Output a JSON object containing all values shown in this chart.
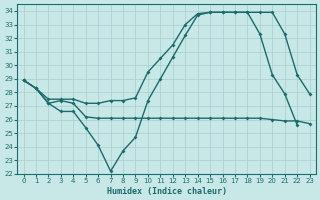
{
  "xlabel": "Humidex (Indice chaleur)",
  "xlim": [
    -0.5,
    23.5
  ],
  "ylim": [
    22,
    34.5
  ],
  "yticks": [
    22,
    23,
    24,
    25,
    26,
    27,
    28,
    29,
    30,
    31,
    32,
    33,
    34
  ],
  "xticks": [
    0,
    1,
    2,
    3,
    4,
    5,
    6,
    7,
    8,
    9,
    10,
    11,
    12,
    13,
    14,
    15,
    16,
    17,
    18,
    19,
    20,
    21,
    22,
    23
  ],
  "bg_color": "#c8e8e8",
  "line_color": "#1a6b6b",
  "grid_color": "#a8cccc",
  "series1_x": [
    0,
    1,
    2,
    3,
    4,
    5,
    6,
    7,
    8,
    9,
    10,
    11,
    12,
    13,
    14,
    15,
    16,
    17,
    18,
    19,
    20,
    21,
    22
  ],
  "series1_y": [
    28.9,
    28.3,
    27.2,
    26.6,
    26.6,
    25.4,
    24.1,
    22.2,
    23.7,
    24.7,
    27.4,
    29.0,
    30.6,
    32.2,
    33.7,
    33.9,
    33.9,
    33.9,
    33.9,
    32.3,
    29.3,
    27.9,
    25.6
  ],
  "series2_x": [
    0,
    1,
    2,
    3,
    4,
    5,
    6,
    7,
    8,
    9,
    10,
    11,
    12,
    13,
    14,
    15,
    16,
    17,
    18,
    19,
    20,
    21,
    22,
    23
  ],
  "series2_y": [
    28.9,
    28.3,
    27.2,
    27.4,
    27.2,
    26.2,
    26.1,
    26.1,
    26.1,
    26.1,
    26.1,
    26.1,
    26.1,
    26.1,
    26.1,
    26.1,
    26.1,
    26.1,
    26.1,
    26.1,
    26.0,
    25.9,
    25.9,
    25.7
  ],
  "series3_x": [
    0,
    1,
    2,
    3,
    4,
    5,
    6,
    7,
    8,
    9,
    10,
    11,
    12,
    13,
    14,
    15,
    16,
    17,
    18,
    19,
    20,
    21,
    22,
    23
  ],
  "series3_y": [
    28.9,
    28.3,
    27.5,
    27.5,
    27.5,
    27.2,
    27.2,
    27.4,
    27.4,
    27.6,
    29.5,
    30.5,
    31.5,
    33.0,
    33.8,
    33.9,
    33.9,
    33.9,
    33.9,
    33.9,
    33.9,
    32.3,
    29.3,
    27.9
  ]
}
